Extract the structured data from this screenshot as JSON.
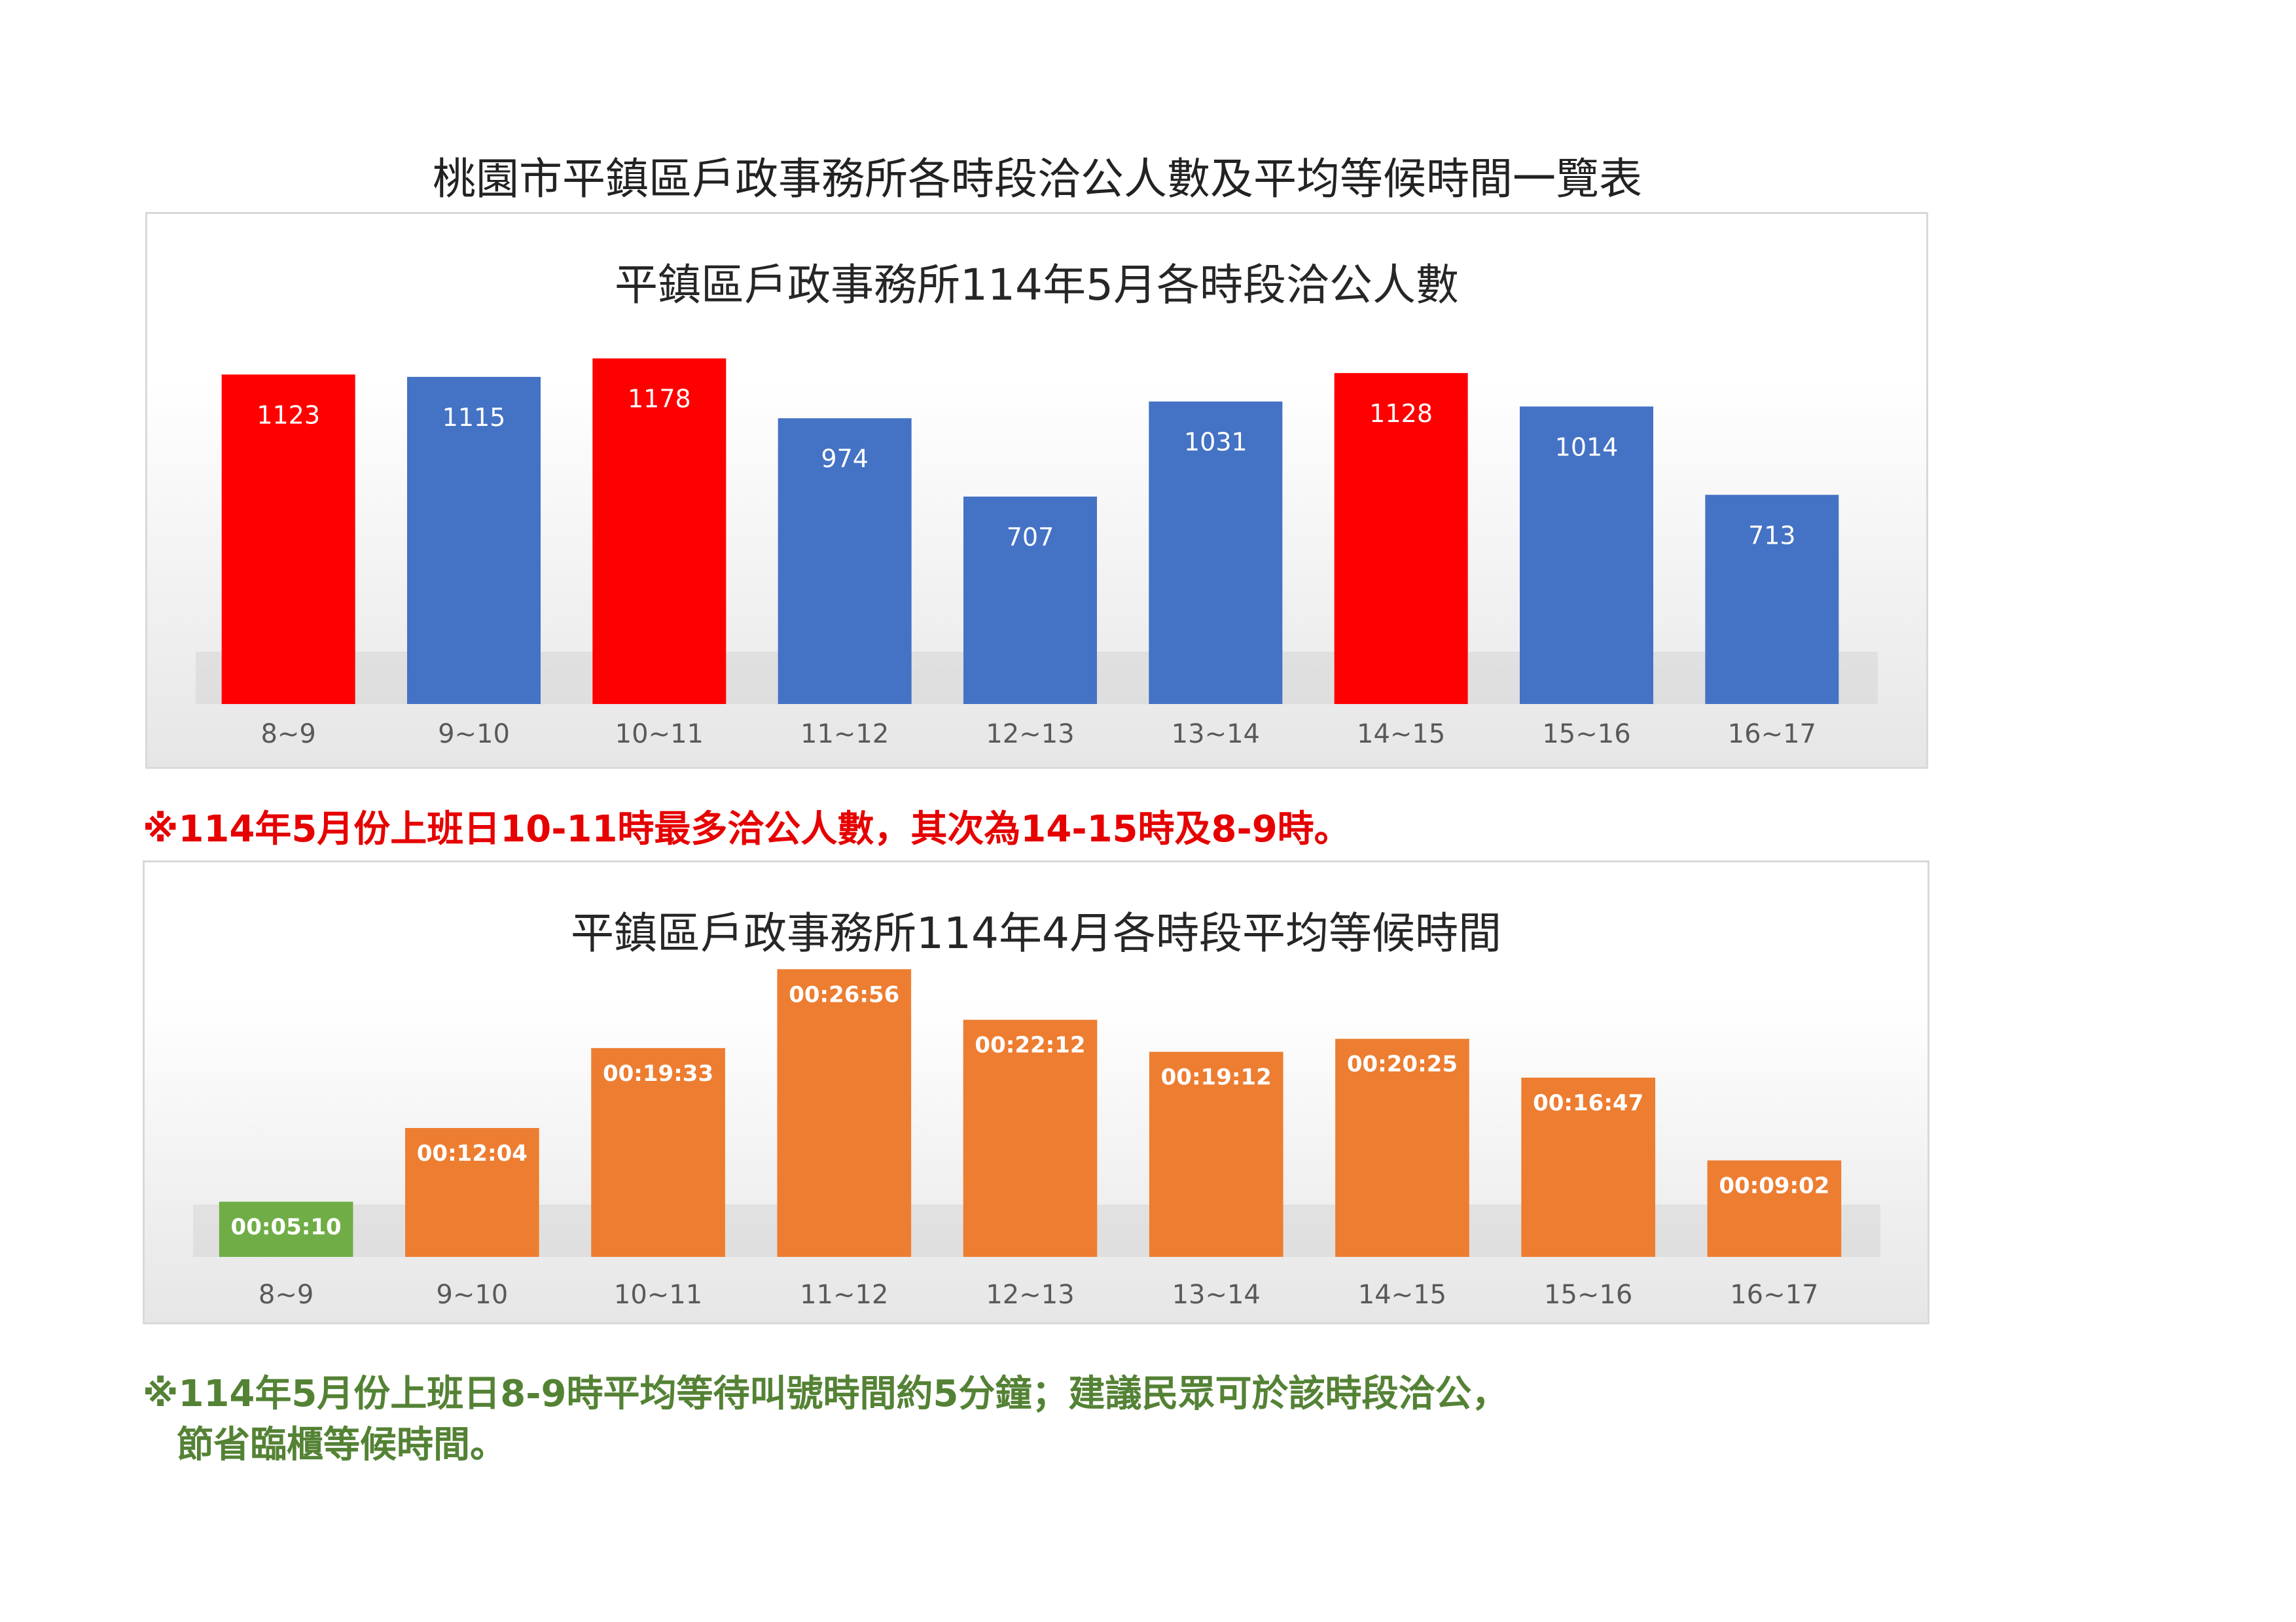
{
  "page_title": "桃園市平鎮區戶政事務所各時段洽公人數及平均等候時間一覽表",
  "colors": {
    "highlight_red": "#ff0000",
    "bar_blue": "#4472c4",
    "bar_orange": "#ed7d31",
    "bar_green": "#70ad47",
    "note_red": "#e60000",
    "note_green": "#548235"
  },
  "chart_data": [
    {
      "type": "bar",
      "title": "平鎮區戶政事務所114年5月各時段洽公人數",
      "categories": [
        "8~9",
        "9~10",
        "10~11",
        "11~12",
        "12~13",
        "13~14",
        "14~15",
        "15~16",
        "16~17"
      ],
      "values": [
        1123,
        1115,
        1178,
        974,
        707,
        1031,
        1128,
        1014,
        713
      ],
      "data_labels": [
        "1123",
        "1115",
        "1178",
        "974",
        "707",
        "1031",
        "1128",
        "1014",
        "713"
      ],
      "bar_colors": [
        "#ff0000",
        "#4472c4",
        "#ff0000",
        "#4472c4",
        "#4472c4",
        "#4472c4",
        "#ff0000",
        "#4472c4",
        "#4472c4"
      ],
      "ylim": [
        0,
        1280
      ],
      "grid": false,
      "legend": "none"
    },
    {
      "type": "bar",
      "title": "平鎮區戶政事務所114年4月各時段平均等候時間",
      "categories": [
        "8~9",
        "9~10",
        "10~11",
        "11~12",
        "12~13",
        "13~14",
        "14~15",
        "15~16",
        "16~17"
      ],
      "values": [
        310,
        724,
        1173,
        1616,
        1332,
        1152,
        1225,
        1007,
        542
      ],
      "data_labels": [
        "00:05:10",
        "00:12:04",
        "00:19:33",
        "00:26:56",
        "00:22:12",
        "00:19:12",
        "00:20:25",
        "00:16:47",
        "00:09:02"
      ],
      "bar_colors": [
        "#70ad47",
        "#ed7d31",
        "#ed7d31",
        "#ed7d31",
        "#ed7d31",
        "#ed7d31",
        "#ed7d31",
        "#ed7d31",
        "#ed7d31"
      ],
      "ylim": [
        0,
        1720
      ],
      "grid": false,
      "legend": "none"
    }
  ],
  "notes": {
    "note1": "※114年5月份上班日10-11時最多洽公人數，其次為14-15時及8-9時。",
    "note2_line1": "※114年5月份上班日8-9時平均等待叫號時間約5分鐘；建議民眾可於該時段洽公，",
    "note2_line2": "節省臨櫃等候時間。"
  }
}
